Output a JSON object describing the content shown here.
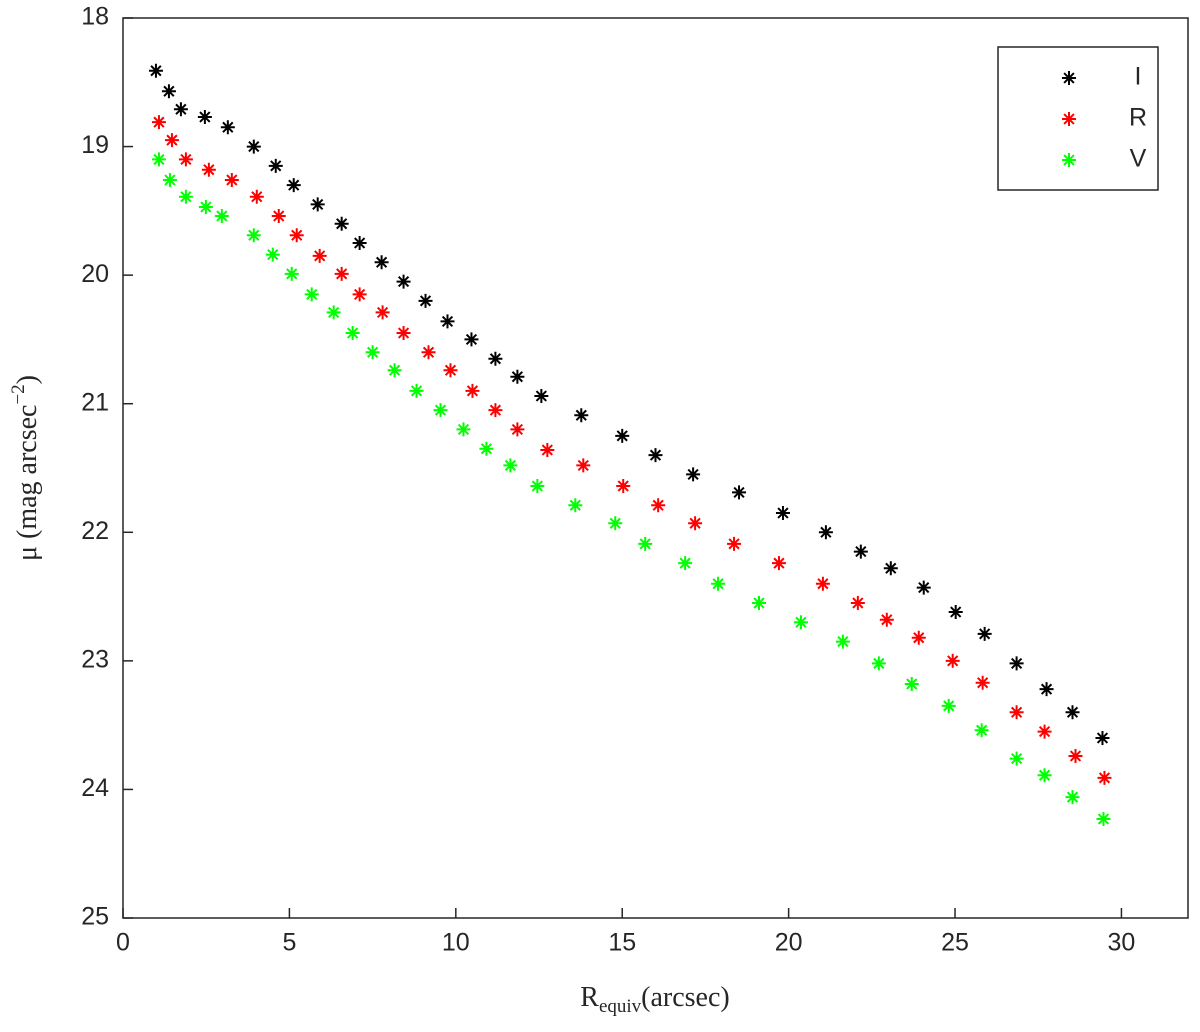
{
  "chart_data": {
    "type": "scatter",
    "xlabel": [
      "R",
      "equiv",
      "(arcsec)"
    ],
    "ylabel": [
      "μ (mag arcsec",
      "−2",
      ")"
    ],
    "xlim": [
      0,
      32
    ],
    "xticks": [
      0,
      5,
      10,
      15,
      20,
      25,
      30
    ],
    "ylim": [
      18,
      25
    ],
    "yticks": [
      18,
      19,
      20,
      21,
      22,
      23,
      24,
      25
    ],
    "y_reversed": true,
    "grid": false,
    "legend": "northeast",
    "series": [
      {
        "name": "I",
        "color": "#000000",
        "x": [
          0.99,
          1.38,
          1.74,
          2.46,
          3.15,
          3.93,
          4.59,
          5.13,
          5.85,
          6.57,
          7.11,
          7.77,
          8.43,
          9.09,
          9.75,
          10.47,
          11.19,
          11.85,
          12.57,
          13.77,
          15.0,
          16.0,
          17.13,
          18.51,
          19.83,
          21.12,
          22.17,
          23.07,
          24.06,
          25.02,
          25.89,
          26.85,
          27.75,
          28.53,
          29.43
        ],
        "values": [
          18.41,
          18.57,
          18.71,
          18.77,
          18.85,
          19.0,
          19.15,
          19.3,
          19.45,
          19.6,
          19.75,
          19.9,
          20.05,
          20.2,
          20.36,
          20.5,
          20.65,
          20.79,
          20.94,
          21.09,
          21.25,
          21.4,
          21.55,
          21.69,
          21.85,
          22.0,
          22.15,
          22.28,
          22.43,
          22.62,
          22.79,
          23.02,
          23.22,
          23.4,
          23.6
        ]
      },
      {
        "name": "R",
        "color": "#ff0000",
        "x": [
          1.08,
          1.47,
          1.89,
          2.58,
          3.27,
          4.02,
          4.68,
          5.22,
          5.91,
          6.57,
          7.11,
          7.8,
          8.43,
          9.18,
          9.84,
          10.5,
          11.19,
          11.85,
          12.75,
          13.83,
          15.03,
          16.08,
          17.19,
          18.36,
          19.71,
          21.03,
          22.08,
          22.95,
          23.91,
          24.93,
          25.83,
          26.85,
          27.69,
          28.62,
          29.49
        ],
        "values": [
          18.81,
          18.95,
          19.1,
          19.18,
          19.26,
          19.39,
          19.54,
          19.69,
          19.85,
          19.99,
          20.15,
          20.29,
          20.45,
          20.6,
          20.74,
          20.9,
          21.05,
          21.2,
          21.36,
          21.48,
          21.64,
          21.79,
          21.93,
          22.09,
          22.24,
          22.4,
          22.55,
          22.68,
          22.82,
          23.0,
          23.17,
          23.4,
          23.55,
          23.74,
          23.91
        ]
      },
      {
        "name": "V",
        "color": "#00ff00",
        "x": [
          1.08,
          1.41,
          1.89,
          2.49,
          2.97,
          3.93,
          4.5,
          5.07,
          5.67,
          6.33,
          6.9,
          7.5,
          8.16,
          8.82,
          9.54,
          10.23,
          10.92,
          11.64,
          12.45,
          13.59,
          14.79,
          15.69,
          16.89,
          17.88,
          19.11,
          20.37,
          21.63,
          22.71,
          23.7,
          24.81,
          25.8,
          26.85,
          27.69,
          28.53,
          29.46
        ],
        "values": [
          19.1,
          19.26,
          19.39,
          19.47,
          19.54,
          19.69,
          19.84,
          19.99,
          20.15,
          20.29,
          20.45,
          20.6,
          20.74,
          20.9,
          21.05,
          21.2,
          21.35,
          21.48,
          21.64,
          21.79,
          21.93,
          22.09,
          22.24,
          22.4,
          22.55,
          22.7,
          22.85,
          23.02,
          23.18,
          23.35,
          23.54,
          23.76,
          23.89,
          24.06,
          24.23
        ]
      }
    ]
  }
}
